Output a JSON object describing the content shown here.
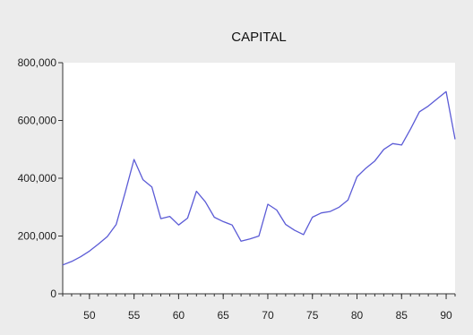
{
  "chart_data": {
    "type": "line",
    "title": "CAPITAL",
    "xlabel": "",
    "ylabel": "",
    "xlim": [
      47,
      91
    ],
    "ylim": [
      0,
      800000
    ],
    "x_ticks": [
      50,
      55,
      60,
      65,
      70,
      75,
      80,
      85,
      90
    ],
    "y_ticks": [
      {
        "value": 0,
        "label": "0"
      },
      {
        "value": 200000,
        "label": "200,000"
      },
      {
        "value": 400000,
        "label": "400,000"
      },
      {
        "value": 600000,
        "label": "600,000"
      },
      {
        "value": 800000,
        "label": "800,000"
      }
    ],
    "grid": false,
    "line_color": "#5b5bd6",
    "series": [
      {
        "x": [
          47,
          48,
          49,
          50,
          51,
          52,
          53,
          54,
          55,
          56,
          57,
          58,
          59,
          60,
          61,
          62,
          63,
          64,
          65,
          66,
          67,
          68,
          69,
          70,
          71,
          72,
          73,
          74,
          75,
          76,
          77,
          78,
          79,
          80,
          81,
          82,
          83,
          84,
          85,
          86,
          87,
          88,
          89,
          90,
          91
        ],
        "values": [
          100000,
          112000,
          128000,
          148000,
          172000,
          198000,
          240000,
          350000,
          465000,
          395000,
          370000,
          260000,
          268000,
          238000,
          262000,
          355000,
          318000,
          265000,
          250000,
          238000,
          182000,
          190000,
          200000,
          310000,
          290000,
          240000,
          220000,
          205000,
          265000,
          280000,
          285000,
          300000,
          325000,
          405000,
          435000,
          460000,
          500000,
          520000,
          515000,
          570000,
          630000,
          650000,
          675000,
          700000,
          535000
        ]
      }
    ]
  }
}
